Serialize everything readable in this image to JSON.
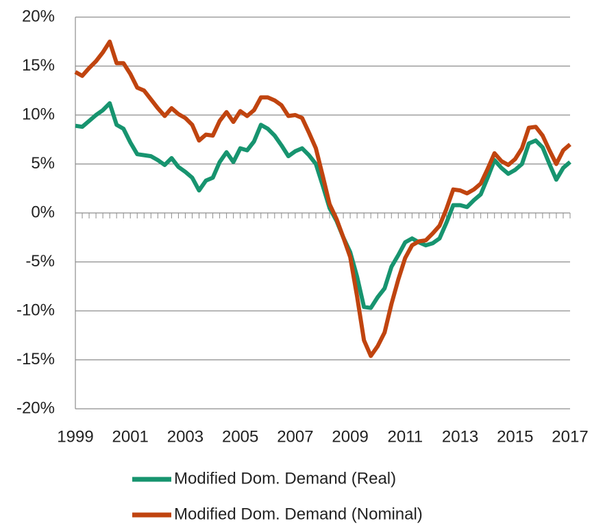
{
  "chart_data": {
    "type": "line",
    "x": [
      1999,
      1999.25,
      1999.5,
      1999.75,
      2000,
      2000.25,
      2000.5,
      2000.75,
      2001,
      2001.25,
      2001.5,
      2001.75,
      2002,
      2002.25,
      2002.5,
      2002.75,
      2003,
      2003.25,
      2003.5,
      2003.75,
      2004,
      2004.25,
      2004.5,
      2004.75,
      2005,
      2005.25,
      2005.5,
      2005.75,
      2006,
      2006.25,
      2006.5,
      2006.75,
      2007,
      2007.25,
      2007.5,
      2007.75,
      2008,
      2008.25,
      2008.5,
      2008.75,
      2009,
      2009.25,
      2009.5,
      2009.75,
      2010,
      2010.25,
      2010.5,
      2010.75,
      2011,
      2011.25,
      2011.5,
      2011.75,
      2012,
      2012.25,
      2012.5,
      2012.75,
      2013,
      2013.25,
      2013.5,
      2013.75,
      2014,
      2014.25,
      2014.5,
      2014.75,
      2015,
      2015.25,
      2015.5,
      2015.75,
      2016,
      2016.25,
      2016.5,
      2016.75,
      2017
    ],
    "series": [
      {
        "name": "Modified Dom. Demand (Real)",
        "color": "#17946f",
        "values": [
          8.9,
          8.8,
          9.4,
          10.0,
          10.5,
          11.2,
          9.0,
          8.6,
          7.2,
          6.0,
          5.9,
          5.8,
          5.4,
          4.9,
          5.6,
          4.7,
          4.2,
          3.6,
          2.3,
          3.3,
          3.6,
          5.2,
          6.2,
          5.2,
          6.6,
          6.4,
          7.3,
          9.0,
          8.6,
          7.9,
          6.9,
          5.8,
          6.3,
          6.6,
          5.9,
          5.0,
          2.8,
          0.5,
          -0.8,
          -2.5,
          -4.0,
          -6.5,
          -9.6,
          -9.7,
          -8.6,
          -7.7,
          -5.5,
          -4.3,
          -3.0,
          -2.6,
          -3.0,
          -3.3,
          -3.1,
          -2.6,
          -1.0,
          0.8,
          0.8,
          0.6,
          1.3,
          1.9,
          3.6,
          5.4,
          4.6,
          4.0,
          4.4,
          5.0,
          7.1,
          7.4,
          6.7,
          5.0,
          3.4,
          4.6,
          5.2
        ]
      },
      {
        "name": "Modified Dom. Demand (Nominal)",
        "color": "#c0440f",
        "values": [
          14.4,
          14.0,
          14.8,
          15.5,
          16.4,
          17.5,
          15.3,
          15.3,
          14.2,
          12.8,
          12.5,
          11.6,
          10.7,
          9.9,
          10.7,
          10.1,
          9.7,
          9.0,
          7.4,
          8.0,
          7.9,
          9.4,
          10.3,
          9.3,
          10.4,
          9.9,
          10.5,
          11.8,
          11.8,
          11.5,
          11.0,
          9.9,
          10.0,
          9.7,
          8.2,
          6.6,
          3.8,
          0.9,
          -0.6,
          -2.5,
          -4.5,
          -8.5,
          -13.0,
          -14.6,
          -13.6,
          -12.2,
          -9.3,
          -6.8,
          -4.6,
          -3.3,
          -2.9,
          -2.8,
          -2.1,
          -1.3,
          0.4,
          2.4,
          2.3,
          2.0,
          2.4,
          3.0,
          4.5,
          6.1,
          5.3,
          4.9,
          5.5,
          6.6,
          8.7,
          8.8,
          7.9,
          6.4,
          5.0,
          6.4,
          7.0
        ]
      }
    ],
    "xlim": [
      1999,
      2017
    ],
    "xticks": [
      1999,
      2001,
      2003,
      2005,
      2007,
      2009,
      2011,
      2013,
      2015,
      2017
    ],
    "ylim": [
      -20,
      20
    ],
    "yticks": [
      {
        "value": -20,
        "label": "-20%"
      },
      {
        "value": -15,
        "label": "-15%"
      },
      {
        "value": -10,
        "label": "-10%"
      },
      {
        "value": -5,
        "label": "-5%"
      },
      {
        "value": 0,
        "label": "0%"
      },
      {
        "value": 5,
        "label": "5%"
      },
      {
        "value": 10,
        "label": "10%"
      },
      {
        "value": 15,
        "label": "15%"
      },
      {
        "value": 20,
        "label": "20%"
      }
    ],
    "grid": true,
    "legend": "bottom"
  }
}
